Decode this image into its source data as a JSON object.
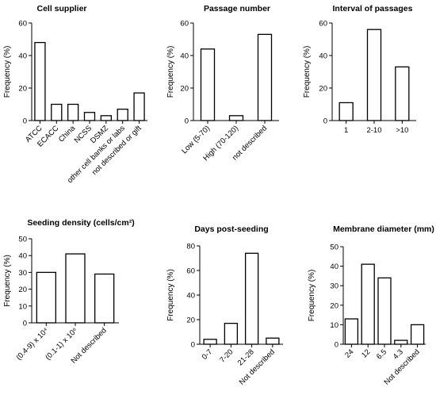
{
  "chart_data": [
    {
      "type": "bar",
      "title": "Cell supplier",
      "ylabel": "Frequency (%)",
      "ylim": [
        0,
        60
      ],
      "yticks": [
        "0",
        "20",
        "40",
        "60"
      ],
      "categories": [
        "ATCC",
        "ECACC",
        "China",
        "NCSS",
        "DSMZ",
        "other cell banks or labs",
        "not described or gift"
      ],
      "values": [
        48,
        10,
        10,
        5,
        3,
        7,
        17
      ]
    },
    {
      "type": "bar",
      "title": "Passage number",
      "ylabel": "Frequency (%)",
      "ylim": [
        0,
        60
      ],
      "yticks": [
        "0",
        "20",
        "40",
        "60"
      ],
      "categories": [
        "Low (5-70)",
        "High (70-120)",
        "not described"
      ],
      "values": [
        44,
        3,
        53
      ]
    },
    {
      "type": "bar",
      "title": "Interval of passages",
      "ylabel": "Frequency (%)",
      "ylim": [
        0,
        60
      ],
      "yticks": [
        "0",
        "20",
        "40",
        "60"
      ],
      "categories": [
        "1",
        "2-10",
        ">10"
      ],
      "values": [
        11,
        56,
        33
      ]
    },
    {
      "type": "bar",
      "title": "Seeding density (cells/cm²)",
      "ylabel": "Frequency (%)",
      "ylim": [
        0,
        50
      ],
      "yticks": [
        "0",
        "10",
        "20",
        "30",
        "40",
        "50"
      ],
      "categories": [
        "(0.4-9) x 10⁴",
        "(0.1-1) x 10⁶",
        "Not described"
      ],
      "values": [
        30,
        41,
        29
      ]
    },
    {
      "type": "bar",
      "title": "Days post-seeding",
      "ylabel": "Frequency (%)",
      "ylim": [
        0,
        80
      ],
      "yticks": [
        "0",
        "20",
        "40",
        "60",
        "80"
      ],
      "categories": [
        "0-7",
        "7-20",
        "21-28",
        "Not described"
      ],
      "values": [
        4,
        17,
        74,
        5
      ]
    },
    {
      "type": "bar",
      "title": "Membrane diameter (mm)",
      "ylabel": "Frequency (%)",
      "ylim": [
        0,
        50
      ],
      "yticks": [
        "0",
        "10",
        "20",
        "30",
        "40",
        "50"
      ],
      "categories": [
        "24",
        "12",
        "6.5",
        "4.3",
        "Not described"
      ],
      "values": [
        13,
        41,
        34,
        2,
        10
      ]
    }
  ]
}
